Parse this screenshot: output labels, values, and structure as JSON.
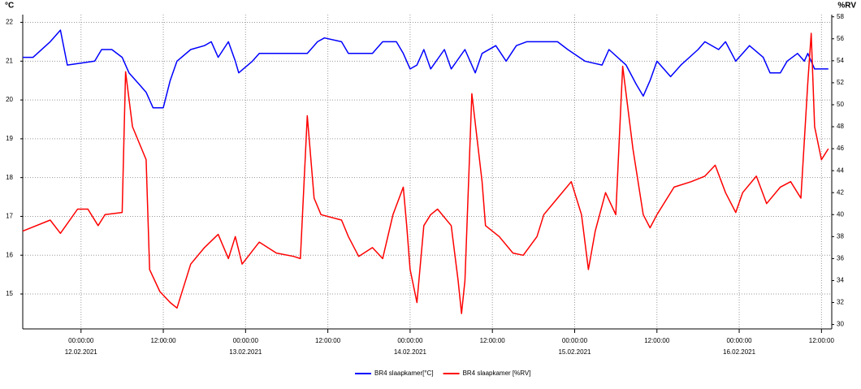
{
  "chart_data": {
    "type": "line",
    "ylabel": "°C",
    "y2label": "%RV",
    "xlim": [
      "2021-02-11 15:30",
      "2021-02-16 13:30"
    ],
    "xticks": [
      {
        "value": "2021-02-12 00:00",
        "label": "00:00:00",
        "date": "12.02.2021"
      },
      {
        "value": "2021-02-12 12:00",
        "label": "12:00:00"
      },
      {
        "value": "2021-02-13 00:00",
        "label": "00:00:00",
        "date": "13.02.2021"
      },
      {
        "value": "2021-02-13 12:00",
        "label": "12:00:00"
      },
      {
        "value": "2021-02-14 00:00",
        "label": "00:00:00",
        "date": "14.02.2021"
      },
      {
        "value": "2021-02-14 12:00",
        "label": "12:00:00"
      },
      {
        "value": "2021-02-15 00:00",
        "label": "00:00:00",
        "date": "15.02.2021"
      },
      {
        "value": "2021-02-15 12:00",
        "label": "12:00:00"
      },
      {
        "value": "2021-02-16 00:00",
        "label": "00:00:00",
        "date": "16.02.2021"
      },
      {
        "value": "2021-02-16 12:00",
        "label": "12:00:00"
      }
    ],
    "ylim": [
      14.1,
      22.2
    ],
    "yticks": [
      15,
      16,
      17,
      18,
      19,
      20,
      21,
      22
    ],
    "y2lim": [
      29.6,
      58.2
    ],
    "y2ticks": [
      30,
      32,
      34,
      36,
      38,
      40,
      42,
      44,
      46,
      48,
      50,
      52,
      54,
      56,
      58
    ],
    "grid": true,
    "series": [
      {
        "name": "BR4 slaapkamer[°C]",
        "color": "#0000ff",
        "x": [
          "2021-02-11 15:30",
          "2021-02-11 17:00",
          "2021-02-11 19:30",
          "2021-02-11 21:00",
          "2021-02-11 22:00",
          "2021-02-12 02:00",
          "2021-02-12 03:00",
          "2021-02-12 04:30",
          "2021-02-12 06:00",
          "2021-02-12 07:00",
          "2021-02-12 08:30",
          "2021-02-12 09:30",
          "2021-02-12 10:30",
          "2021-02-12 12:00",
          "2021-02-12 13:00",
          "2021-02-12 14:00",
          "2021-02-12 16:00",
          "2021-02-12 18:00",
          "2021-02-12 19:00",
          "2021-02-12 20:00",
          "2021-02-12 21:30",
          "2021-02-12 22:30",
          "2021-02-12 23:00",
          "2021-02-13 01:00",
          "2021-02-13 02:00",
          "2021-02-13 09:00",
          "2021-02-13 10:30",
          "2021-02-13 11:30",
          "2021-02-13 14:00",
          "2021-02-13 15:00",
          "2021-02-13 18:30",
          "2021-02-13 20:00",
          "2021-02-13 22:00",
          "2021-02-13 23:00",
          "2021-02-14 00:00",
          "2021-02-14 01:00",
          "2021-02-14 02:00",
          "2021-02-14 03:00",
          "2021-02-14 05:00",
          "2021-02-14 06:00",
          "2021-02-14 08:00",
          "2021-02-14 09:30",
          "2021-02-14 10:30",
          "2021-02-14 12:30",
          "2021-02-14 14:00",
          "2021-02-14 15:30",
          "2021-02-14 17:00",
          "2021-02-14 21:30",
          "2021-02-14 23:00",
          "2021-02-15 01:30",
          "2021-02-15 04:00",
          "2021-02-15 05:00",
          "2021-02-15 07:30",
          "2021-02-15 09:00",
          "2021-02-15 10:00",
          "2021-02-15 11:00",
          "2021-02-15 12:00",
          "2021-02-15 14:00",
          "2021-02-15 15:30",
          "2021-02-15 18:00",
          "2021-02-15 19:00",
          "2021-02-15 21:00",
          "2021-02-15 22:00",
          "2021-02-15 23:30",
          "2021-02-16 00:30",
          "2021-02-16 01:30",
          "2021-02-16 03:30",
          "2021-02-16 04:30",
          "2021-02-16 06:00",
          "2021-02-16 07:00",
          "2021-02-16 08:30",
          "2021-02-16 09:30",
          "2021-02-16 10:00",
          "2021-02-16 11:00",
          "2021-02-16 13:00"
        ],
        "values": [
          21.1,
          21.1,
          21.5,
          21.8,
          20.9,
          21.0,
          21.3,
          21.3,
          21.1,
          20.7,
          20.4,
          20.2,
          19.8,
          19.8,
          20.5,
          21.0,
          21.3,
          21.4,
          21.5,
          21.1,
          21.5,
          21.0,
          20.7,
          21.0,
          21.2,
          21.2,
          21.5,
          21.6,
          21.5,
          21.2,
          21.2,
          21.5,
          21.5,
          21.2,
          20.8,
          20.9,
          21.3,
          20.8,
          21.3,
          20.8,
          21.3,
          20.7,
          21.2,
          21.4,
          21.0,
          21.4,
          21.5,
          21.5,
          21.3,
          21.0,
          20.9,
          21.3,
          20.9,
          20.4,
          20.1,
          20.5,
          21.0,
          20.6,
          20.9,
          21.3,
          21.5,
          21.3,
          21.5,
          21.0,
          21.2,
          21.4,
          21.1,
          20.7,
          20.7,
          21.0,
          21.2,
          21.0,
          21.2,
          20.8,
          20.8
        ]
      },
      {
        "name": "BR4 slaapkamer [%RV]",
        "color": "#ff0000",
        "axis": "y2",
        "x": [
          "2021-02-11 15:30",
          "2021-02-11 19:30",
          "2021-02-11 21:00",
          "2021-02-11 23:30",
          "2021-02-12 01:00",
          "2021-02-12 02:30",
          "2021-02-12 03:30",
          "2021-02-12 06:00",
          "2021-02-12 06:30",
          "2021-02-12 07:30",
          "2021-02-12 09:30",
          "2021-02-12 10:00",
          "2021-02-12 11:30",
          "2021-02-12 13:00",
          "2021-02-12 14:00",
          "2021-02-12 16:00",
          "2021-02-12 18:00",
          "2021-02-12 20:00",
          "2021-02-12 21:30",
          "2021-02-12 22:30",
          "2021-02-12 23:30",
          "2021-02-13 02:00",
          "2021-02-13 04:30",
          "2021-02-13 07:00",
          "2021-02-13 08:00",
          "2021-02-13 09:00",
          "2021-02-13 10:00",
          "2021-02-13 11:00",
          "2021-02-13 14:00",
          "2021-02-13 15:00",
          "2021-02-13 16:30",
          "2021-02-13 18:30",
          "2021-02-13 20:00",
          "2021-02-13 21:30",
          "2021-02-13 23:00",
          "2021-02-13 23:30",
          "2021-02-14 00:00",
          "2021-02-14 01:00",
          "2021-02-14 02:00",
          "2021-02-14 03:00",
          "2021-02-14 04:00",
          "2021-02-14 06:00",
          "2021-02-14 07:00",
          "2021-02-14 07:30",
          "2021-02-14 08:00",
          "2021-02-14 09:00",
          "2021-02-14 10:30",
          "2021-02-14 11:00",
          "2021-02-14 13:00",
          "2021-02-14 15:00",
          "2021-02-14 16:30",
          "2021-02-14 18:30",
          "2021-02-14 19:30",
          "2021-02-14 21:30",
          "2021-02-14 23:30",
          "2021-02-15 01:00",
          "2021-02-15 02:00",
          "2021-02-15 03:00",
          "2021-02-15 04:30",
          "2021-02-15 06:00",
          "2021-02-15 07:00",
          "2021-02-15 08:30",
          "2021-02-15 10:00",
          "2021-02-15 11:00",
          "2021-02-15 12:00",
          "2021-02-15 14:30",
          "2021-02-15 17:00",
          "2021-02-15 19:00",
          "2021-02-15 20:30",
          "2021-02-15 22:00",
          "2021-02-15 23:30",
          "2021-02-16 00:30",
          "2021-02-16 02:30",
          "2021-02-16 04:00",
          "2021-02-16 06:00",
          "2021-02-16 07:30",
          "2021-02-16 09:00",
          "2021-02-16 10:00",
          "2021-02-16 10:30",
          "2021-02-16 11:00",
          "2021-02-16 12:00",
          "2021-02-16 13:00"
        ],
        "values": [
          38.5,
          39.5,
          38.3,
          40.5,
          40.5,
          39.0,
          40.0,
          40.2,
          53,
          48,
          45,
          35,
          33,
          32,
          31.5,
          35.5,
          37,
          38.2,
          36,
          38,
          35.5,
          37.5,
          36.5,
          36.2,
          36,
          49,
          41.5,
          40,
          39.5,
          38,
          36.2,
          37,
          36,
          40,
          42.5,
          39,
          35,
          32,
          39,
          40,
          40.5,
          39,
          34,
          31,
          34,
          51,
          43,
          39,
          38,
          36.5,
          36.3,
          38,
          40,
          41.5,
          43,
          40,
          35,
          38.5,
          42,
          40,
          53.5,
          46,
          40,
          38.8,
          40,
          42.5,
          43,
          43.5,
          44.5,
          42,
          40.2,
          42,
          43.5,
          41,
          42.5,
          43,
          41.5,
          52,
          56.5,
          48,
          45,
          46
        ]
      }
    ]
  }
}
